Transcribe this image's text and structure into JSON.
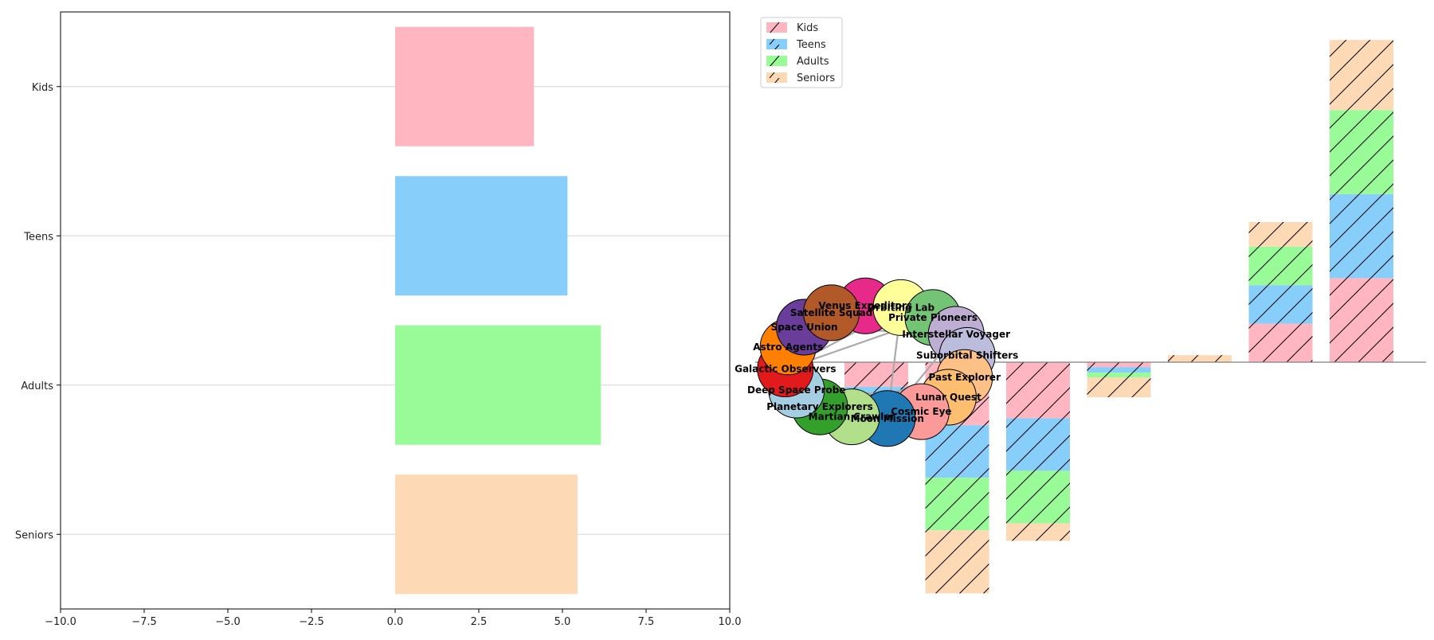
{
  "chart_data": [
    {
      "type": "bar",
      "orientation": "horizontal",
      "categories": [
        "Kids",
        "Teens",
        "Adults",
        "Seniors"
      ],
      "values": [
        4.15,
        5.15,
        6.15,
        5.45
      ],
      "colors": [
        "#FFB6C1",
        "#87CEFA",
        "#98FB98",
        "#FDD9B5"
      ],
      "xlim": [
        -10,
        10
      ],
      "xticks": [
        "−10.0",
        "−7.5",
        "−5.0",
        "−2.5",
        "0.0",
        "2.5",
        "5.0",
        "7.5",
        "10.0"
      ],
      "xtick_values": [
        -10,
        -7.5,
        -5,
        -2.5,
        0,
        2.5,
        5,
        7.5,
        10
      ],
      "grid": "y"
    },
    {
      "type": "bar",
      "stacked": true,
      "hatch": "/",
      "legend": {
        "placement": "top-left",
        "entries": [
          "Kids",
          "Teens",
          "Adults",
          "Seniors"
        ]
      },
      "x": [
        1,
        2,
        3,
        4,
        5,
        6,
        7
      ],
      "ylim": [
        -3.15,
        4.6
      ],
      "series": [
        {
          "name": "Kids",
          "color": "#FFB6C1",
          "values": [
            -0.35,
            -0.9,
            -0.8,
            -0.07,
            0.0,
            0.55,
            1.2
          ]
        },
        {
          "name": "Teens",
          "color": "#87CEFA",
          "values": [
            -0.2,
            -0.75,
            -0.75,
            -0.08,
            0.0,
            0.55,
            1.2
          ]
        },
        {
          "name": "Adults",
          "color": "#98FB98",
          "values": [
            0.0,
            -0.75,
            -0.75,
            -0.07,
            0.0,
            0.55,
            1.2
          ]
        },
        {
          "name": "Seniors",
          "color": "#FDD9B5",
          "values": [
            -0.0,
            -0.9,
            -0.25,
            -0.28,
            0.1,
            0.35,
            1.0
          ]
        }
      ]
    },
    {
      "type": "network",
      "nodes": [
        {
          "label": "Venus Expeditors",
          "color": "#E7298A"
        },
        {
          "label": "Orbiting Lab",
          "color": "#FFFF99"
        },
        {
          "label": "Private Pioneers",
          "color": "#74C476"
        },
        {
          "label": "Interstellar Voyager",
          "color": "#BEAED4"
        },
        {
          "label": "Suborbital Shifters",
          "color": "#BCBDDC"
        },
        {
          "label": "Past Explorer",
          "color": "#FDC086"
        },
        {
          "label": "Lunar Quest",
          "color": "#FDBF6F"
        },
        {
          "label": "Cosmic Eye",
          "color": "#FB9A99"
        },
        {
          "label": "Moon Mission",
          "color": "#1F78B4"
        },
        {
          "label": "Martian Crawler",
          "color": "#B2DF8A"
        },
        {
          "label": "Planetary Explorers",
          "color": "#33A02C"
        },
        {
          "label": "Deep Space Probe",
          "color": "#A6CEE3"
        },
        {
          "label": "Galactic Observers",
          "color": "#E31A1C"
        },
        {
          "label": "Astro Agents",
          "color": "#FF7F00"
        },
        {
          "label": "Space Union",
          "color": "#6A3D9A"
        },
        {
          "label": "Satellite Squad",
          "color": "#B15928"
        }
      ],
      "edges": [
        [
          "Moon Mission",
          "Orbiting Lab"
        ],
        [
          "Moon Mission",
          "Interstellar Voyager"
        ],
        [
          "Galactic Observers",
          "Private Pioneers"
        ],
        [
          "Astro Agents",
          "Venus Expeditors"
        ],
        [
          "Space Union",
          "Orbiting Lab"
        ],
        [
          "Planetary Explorers",
          "Past Explorer"
        ],
        [
          "Lunar Quest",
          "Martian Crawler"
        ],
        [
          "Suborbital Shifters",
          "Cosmic Eye"
        ],
        [
          "Satellite Squad",
          "Private Pioneers"
        ],
        [
          "Deep Space Probe",
          "Lunar Quest"
        ],
        [
          "Space Union",
          "Interstellar Voyager"
        ],
        [
          "Galactic Observers",
          "Orbiting Lab"
        ]
      ]
    }
  ]
}
